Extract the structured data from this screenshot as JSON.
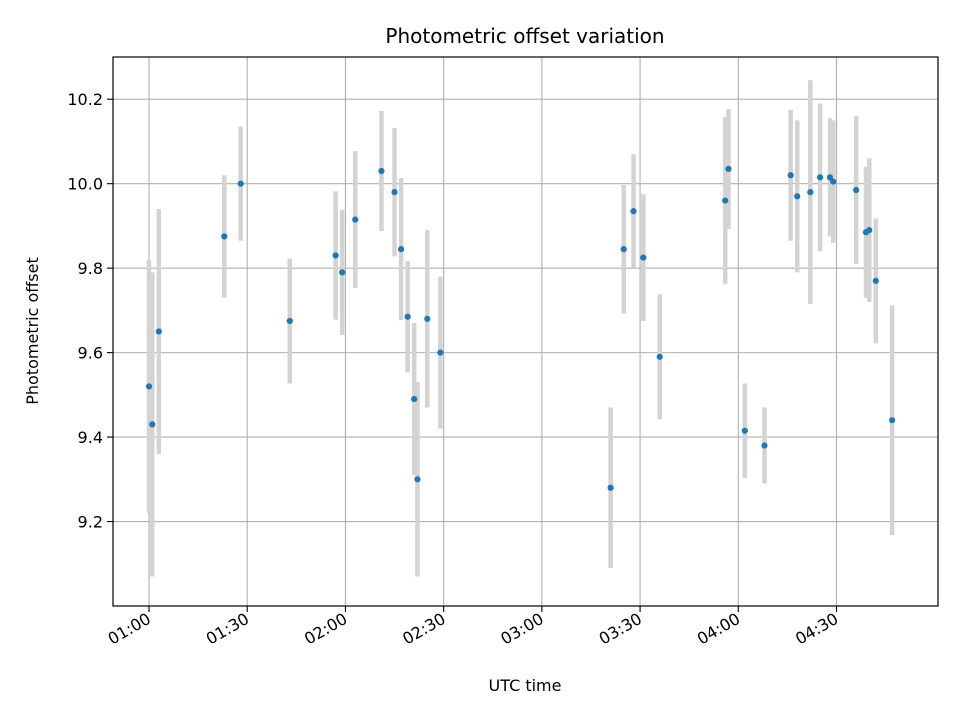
{
  "chart_data": {
    "type": "scatter",
    "title": "Photometric offset variation",
    "xlabel": "UTC time",
    "ylabel": "Photometric offset",
    "grid": true,
    "x_ticks": [
      "01:00",
      "01:30",
      "02:00",
      "02:30",
      "03:00",
      "03:30",
      "04:00",
      "04:30"
    ],
    "xlim": [
      "00:49",
      "05:01"
    ],
    "y_ticks": [
      9.2,
      9.4,
      9.6,
      9.8,
      10.0,
      10.2
    ],
    "ylim": [
      9.0,
      10.3
    ],
    "colors": {
      "point": "#1f77b4",
      "errorbar": "#d3d3d3",
      "grid": "#b0b0b0"
    },
    "points": [
      {
        "x": "01:00",
        "y": 9.52,
        "err": 0.3
      },
      {
        "x": "01:01",
        "y": 9.43,
        "err": 0.36
      },
      {
        "x": "01:03",
        "y": 9.65,
        "err": 0.29
      },
      {
        "x": "01:23",
        "y": 9.875,
        "err": 0.145
      },
      {
        "x": "01:28",
        "y": 10.0,
        "err": 0.135
      },
      {
        "x": "01:43",
        "y": 9.675,
        "err": 0.148
      },
      {
        "x": "01:57",
        "y": 9.83,
        "err": 0.152
      },
      {
        "x": "01:59",
        "y": 9.79,
        "err": 0.148
      },
      {
        "x": "02:03",
        "y": 9.915,
        "err": 0.162
      },
      {
        "x": "02:11",
        "y": 10.03,
        "err": 0.142
      },
      {
        "x": "02:15",
        "y": 9.98,
        "err": 0.152
      },
      {
        "x": "02:17",
        "y": 9.845,
        "err": 0.168
      },
      {
        "x": "02:19",
        "y": 9.685,
        "err": 0.132
      },
      {
        "x": "02:21",
        "y": 9.49,
        "err": 0.18
      },
      {
        "x": "02:22",
        "y": 9.3,
        "err": 0.23
      },
      {
        "x": "02:25",
        "y": 9.68,
        "err": 0.21
      },
      {
        "x": "02:29",
        "y": 9.6,
        "err": 0.18
      },
      {
        "x": "03:21",
        "y": 9.28,
        "err": 0.19
      },
      {
        "x": "03:25",
        "y": 9.845,
        "err": 0.152
      },
      {
        "x": "03:28",
        "y": 9.935,
        "err": 0.135
      },
      {
        "x": "03:31",
        "y": 9.825,
        "err": 0.15
      },
      {
        "x": "03:36",
        "y": 9.59,
        "err": 0.148
      },
      {
        "x": "03:56",
        "y": 9.96,
        "err": 0.198
      },
      {
        "x": "03:57",
        "y": 10.035,
        "err": 0.142
      },
      {
        "x": "04:02",
        "y": 9.415,
        "err": 0.112
      },
      {
        "x": "04:08",
        "y": 9.38,
        "err": 0.09
      },
      {
        "x": "04:16",
        "y": 10.02,
        "err": 0.155
      },
      {
        "x": "04:18",
        "y": 9.97,
        "err": 0.18
      },
      {
        "x": "04:22",
        "y": 9.98,
        "err": 0.265
      },
      {
        "x": "04:25",
        "y": 10.015,
        "err": 0.175
      },
      {
        "x": "04:28",
        "y": 10.015,
        "err": 0.14
      },
      {
        "x": "04:29",
        "y": 10.005,
        "err": 0.145
      },
      {
        "x": "04:36",
        "y": 9.985,
        "err": 0.175
      },
      {
        "x": "04:39",
        "y": 9.885,
        "err": 0.155
      },
      {
        "x": "04:40",
        "y": 9.89,
        "err": 0.17
      },
      {
        "x": "04:42",
        "y": 9.77,
        "err": 0.148
      },
      {
        "x": "04:47",
        "y": 9.44,
        "err": 0.272
      }
    ]
  }
}
